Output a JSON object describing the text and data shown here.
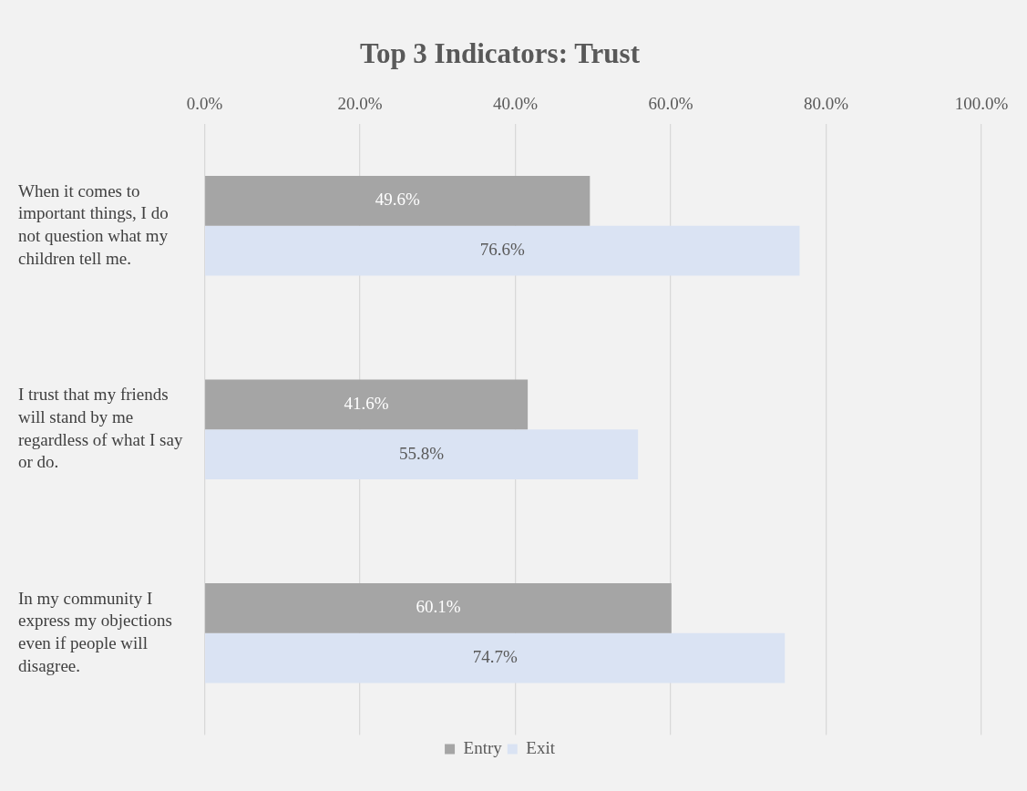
{
  "chart_data": {
    "type": "bar",
    "orientation": "horizontal",
    "title": "Top 3 Indicators: Trust",
    "categories": [
      "When it comes to important things, I do not question what my children tell me.",
      "I trust that my friends will stand by me regardless of what I say or do.",
      "In my community I express my objections even if people will disagree."
    ],
    "series": [
      {
        "name": "Entry",
        "color": "#a5a5a5",
        "values": [
          49.6,
          41.6,
          60.1
        ],
        "value_labels": [
          "49.6%",
          "41.6%",
          "60.1%"
        ]
      },
      {
        "name": "Exit",
        "color": "#dae3f3",
        "values": [
          76.6,
          55.8,
          74.7
        ],
        "value_labels": [
          "76.6%",
          "55.8%",
          "74.7%"
        ]
      }
    ],
    "xlim": [
      0,
      100
    ],
    "xticks": [
      {
        "value": 0,
        "label": "0.0%"
      },
      {
        "value": 20,
        "label": "20.0%"
      },
      {
        "value": 40,
        "label": "40.0%"
      },
      {
        "value": 60,
        "label": "60.0%"
      },
      {
        "value": 80,
        "label": "80.0%"
      },
      {
        "value": 100,
        "label": "100.0%"
      }
    ],
    "grid": "x",
    "legend": "bottom"
  }
}
